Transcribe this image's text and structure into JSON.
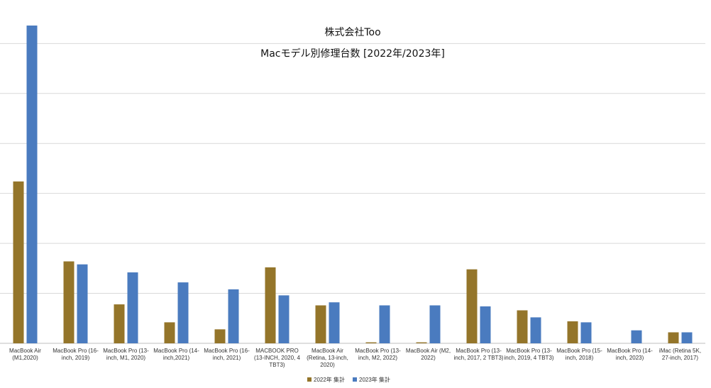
{
  "chart_data": {
    "type": "bar",
    "title": "株式会社Too",
    "subtitle": "Macモデル別修理台数 [2022年/2023年]",
    "xlabel": "",
    "ylabel": "",
    "ylim": [
      0,
      340
    ],
    "grid": true,
    "legend_position": "bottom",
    "categories": [
      [
        "MacBook Air",
        "(M1,2020)"
      ],
      [
        "MacBook Pro (16-",
        "inch, 2019)"
      ],
      [
        "MacBook Pro (13-",
        "inch, M1, 2020)"
      ],
      [
        "MacBook Pro (14-",
        "inch,2021)"
      ],
      [
        "MacBook Pro (16-",
        "inch, 2021)"
      ],
      [
        "MACBOOK PRO",
        "(13-INCH, 2020, 4",
        "TBT3)"
      ],
      [
        "MacBook Air",
        "(Retina, 13-inch,",
        "2020)"
      ],
      [
        "MacBook Pro (13-",
        "inch, M2, 2022)"
      ],
      [
        "MacBook Air (M2,",
        "2022)"
      ],
      [
        "MacBook Pro (13-",
        "inch, 2017, 2 TBT3)"
      ],
      [
        "MacBook Pro (13-",
        "inch, 2019, 4 TBT3)"
      ],
      [
        "MacBook Pro (15-",
        "inch, 2018)"
      ],
      [
        "MacBook Pro (14-",
        "inch, 2023)"
      ],
      [
        "iMac (Retina 5K,",
        "27-inch, 2017)"
      ]
    ],
    "series": [
      {
        "name": "2022年 集計",
        "color": "#94752a",
        "values": [
          162,
          82,
          39,
          21,
          14,
          76,
          38,
          1,
          1,
          74,
          33,
          22,
          0,
          11
        ]
      },
      {
        "name": "2023年 集計",
        "color": "#4a7bbf",
        "values": [
          318,
          79,
          71,
          61,
          54,
          48,
          41,
          38,
          38,
          37,
          26,
          21,
          13,
          11
        ]
      }
    ]
  }
}
